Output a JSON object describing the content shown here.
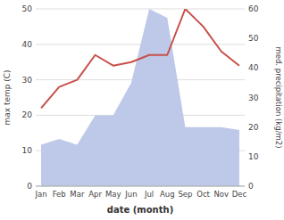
{
  "chart_data": {
    "type": "line",
    "categories": [
      "Jan",
      "Feb",
      "Mar",
      "Apr",
      "May",
      "Jun",
      "Jul",
      "Aug",
      "Sep",
      "Oct",
      "Nov",
      "Dec"
    ],
    "series": [
      {
        "type": "area",
        "axis": "y2",
        "color": "#bec8e8",
        "values": [
          14,
          16,
          14,
          24,
          24,
          35,
          60,
          57,
          20,
          20,
          20,
          19
        ]
      },
      {
        "type": "line",
        "color": "#c8504a",
        "values": [
          22,
          28,
          30,
          37,
          34,
          35,
          37,
          37,
          50,
          45,
          38,
          34
        ]
      }
    ],
    "xlabel": "date (month)",
    "ylabel": "max temp (C)",
    "y2label": "med. precipitation (kg/m2)",
    "ylim": [
      0,
      50
    ],
    "yticks": [
      0,
      10,
      20,
      30,
      40,
      50
    ],
    "y2lim": [
      0,
      60
    ],
    "y2ticks": [
      0,
      10,
      20,
      30,
      40,
      50,
      60
    ],
    "grid": true
  }
}
